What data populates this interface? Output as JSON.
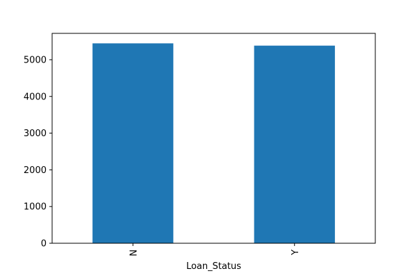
{
  "chart_data": {
    "type": "bar",
    "categories": [
      "N",
      "Y"
    ],
    "values": [
      5446.08,
      5384.07
    ],
    "title": "",
    "xlabel": "Loan_Status",
    "ylabel": "",
    "ylim": [
      0,
      5718.4
    ],
    "yticks": [
      0,
      1000,
      2000,
      3000,
      4000,
      5000
    ],
    "bar_color": "#1f77b4",
    "grid": false,
    "legend": "none"
  }
}
